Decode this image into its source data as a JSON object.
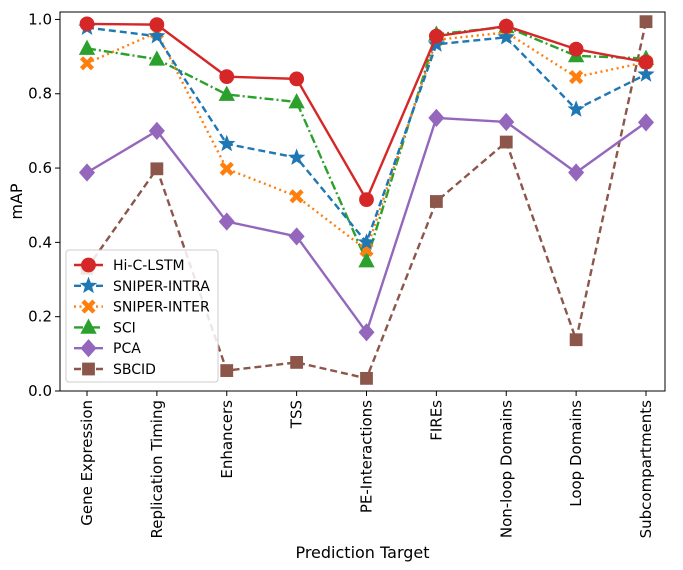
{
  "chart_data": {
    "type": "line",
    "title": "",
    "xlabel": "Prediction Target",
    "ylabel": "mAP",
    "categories": [
      "Gene Expression",
      "Replication Timing",
      "Enhancers",
      "TSS",
      "PE-Interactions",
      "FIREs",
      "Non-loop Domains",
      "Loop Domains",
      "Subcompartments"
    ],
    "ylim": [
      0.0,
      1.02
    ],
    "yticks": [
      "0.0",
      "0.2",
      "0.4",
      "0.6",
      "0.8",
      "1.0"
    ],
    "grid": false,
    "legend_position": "lower-left",
    "series": [
      {
        "name": "Hi-C-LSTM",
        "color": "#d62728",
        "linestyle": "solid",
        "marker": "circle",
        "values": [
          0.988,
          0.986,
          0.846,
          0.84,
          0.515,
          0.955,
          0.982,
          0.92,
          0.885
        ]
      },
      {
        "name": "SNIPER-INTRA",
        "color": "#1f77b4",
        "linestyle": "dashed",
        "marker": "star",
        "values": [
          0.978,
          0.955,
          0.665,
          0.628,
          0.4,
          0.933,
          0.952,
          0.758,
          0.852
        ]
      },
      {
        "name": "SNIPER-INTER",
        "color": "#ff7f0e",
        "linestyle": "dotted",
        "marker": "x",
        "values": [
          0.882,
          0.965,
          0.598,
          0.524,
          0.38,
          0.945,
          0.965,
          0.845,
          0.885
        ]
      },
      {
        "name": "SCI",
        "color": "#2ca02c",
        "linestyle": "dashdot",
        "marker": "triangle",
        "values": [
          0.922,
          0.893,
          0.798,
          0.778,
          0.35,
          0.96,
          0.98,
          0.902,
          0.895
        ]
      },
      {
        "name": "PCA",
        "color": "#9467bd",
        "linestyle": "solid",
        "marker": "diamond",
        "values": [
          0.588,
          0.7,
          0.456,
          0.416,
          0.158,
          0.735,
          0.724,
          0.588,
          0.723
        ]
      },
      {
        "name": "SBCID",
        "color": "#8c564b",
        "linestyle": "dashed",
        "marker": "square",
        "values": [
          0.33,
          0.598,
          0.055,
          0.077,
          0.034,
          0.51,
          0.67,
          0.138,
          0.994
        ]
      }
    ]
  }
}
